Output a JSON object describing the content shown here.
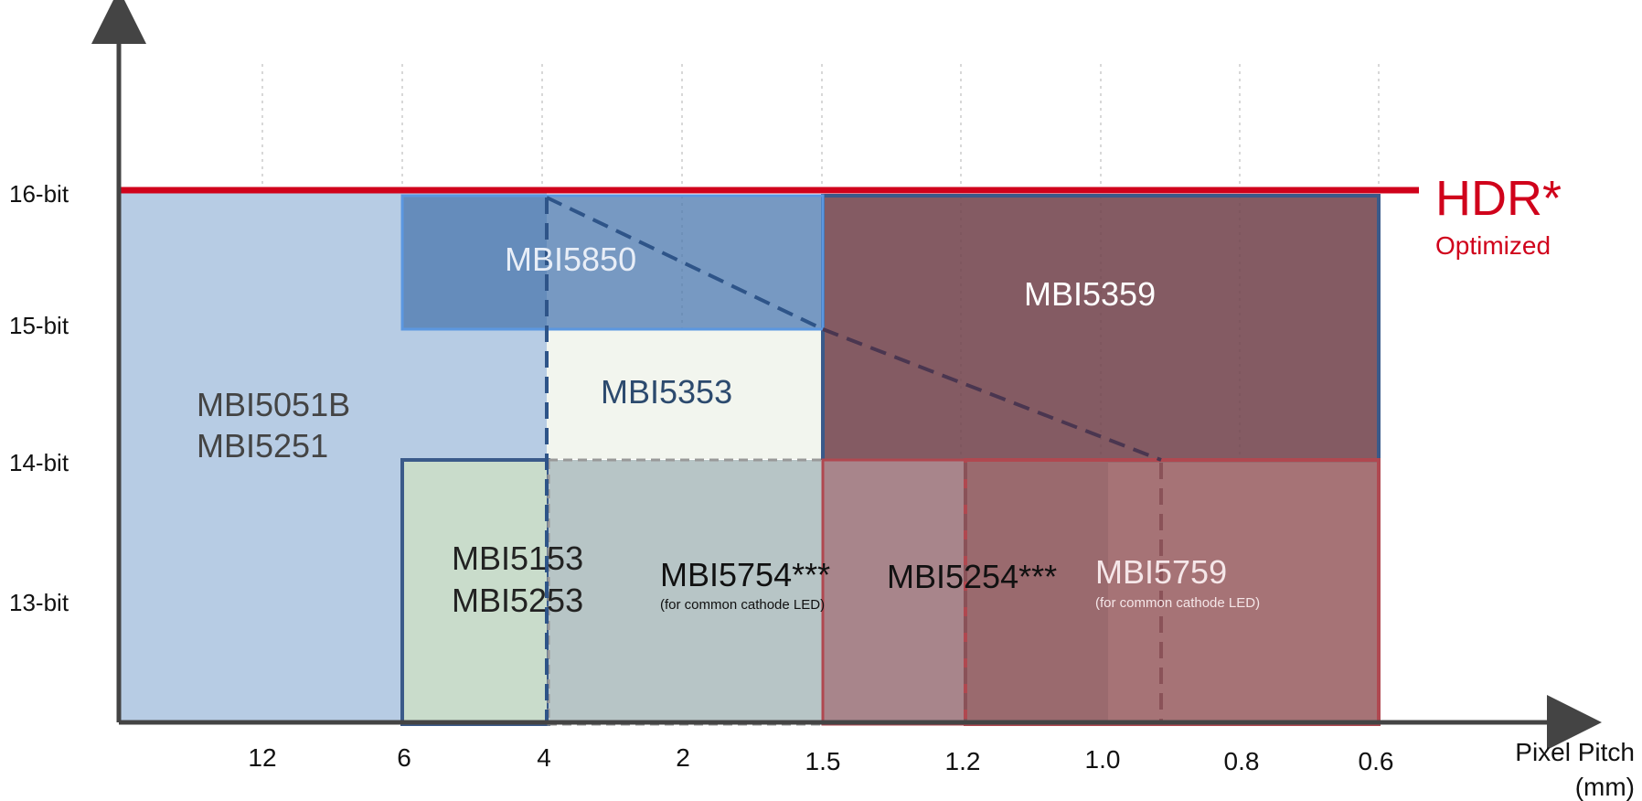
{
  "chart_data": {
    "type": "area",
    "y_ticks": [
      "16-bit",
      "15-bit",
      "14-bit",
      "13-bit"
    ],
    "x_ticks": [
      "12",
      "6",
      "4",
      "2",
      "1.5",
      "1.2",
      "1.0",
      "0.8",
      "0.6"
    ],
    "x_label_line1": "Pixel Pitch",
    "x_label_line2": "(mm)",
    "hdr": {
      "title": "HDR*",
      "subtitle": "Optimized",
      "color": "#d0021b",
      "level": "16-bit"
    },
    "regions": [
      {
        "name": "MBI5051B / MBI5251",
        "lines": [
          "MBI5051B",
          "MBI5251"
        ],
        "note": "",
        "pitch_from": "> 12",
        "pitch_to": "4",
        "bits_from": "< 13-bit",
        "bits_to": "16-bit",
        "fill": "#b7cce4",
        "stroke": "none",
        "text_color": "#444444"
      },
      {
        "name": "MBI5850",
        "lines": [
          "MBI5850"
        ],
        "note": "",
        "pitch_from": "6",
        "pitch_to": "1.5",
        "bits_from": "15-bit",
        "bits_to": "16-bit",
        "fill": "#4a77ad",
        "stroke": "#5b97e0",
        "text_color": "#e8eef7"
      },
      {
        "name": "MBI5359",
        "lines": [
          "MBI5359"
        ],
        "note": "",
        "pitch_from": "1.5",
        "pitch_to": "0.6",
        "bits_from": "14-bit",
        "bits_to": "16-bit",
        "fill": "#6e3e48",
        "stroke": "#3a5a8a",
        "text_color": "#ffffff"
      },
      {
        "name": "MBI5353",
        "lines": [
          "MBI5353"
        ],
        "note": "",
        "pitch_from": "4",
        "pitch_to": "1.5",
        "bits_from": "14-bit",
        "bits_to": "15-bit",
        "fill": "#f2f5ee",
        "stroke": "none",
        "text_color": "#2c4a6e"
      },
      {
        "name": "MBI5153 / MBI5253",
        "lines": [
          "MBI5153",
          "MBI5253"
        ],
        "note": "",
        "pitch_from": "6",
        "pitch_to": "1.5",
        "bits_from": "< 13-bit",
        "bits_to": "14-bit",
        "fill": "#c9dccb",
        "stroke": "#3a5a8a",
        "text_color": "#222222"
      },
      {
        "name": "MBI5754***",
        "lines": [
          "MBI5754***"
        ],
        "note": "(for common cathode LED)",
        "pitch_from": "4",
        "pitch_to": "1.2",
        "bits_from": "< 13-bit",
        "bits_to": "14-bit",
        "fill": "#b7c5c6",
        "stroke": "#999999",
        "text_color": "#111111"
      },
      {
        "name": "MBI5254***",
        "lines": [
          "MBI5254***"
        ],
        "note": "",
        "pitch_from": "1.5",
        "pitch_to": "1.2",
        "bits_from": "< 13-bit",
        "bits_to": "14-bit",
        "fill": "#a8858b",
        "stroke": "#b04850",
        "text_color": "#111111"
      },
      {
        "name": "MBI5759",
        "lines": [
          "MBI5759"
        ],
        "note": "(for common cathode LED)",
        "pitch_from": "1.2",
        "pitch_to": "0.6",
        "bits_from": "< 13-bit",
        "bits_to": "14-bit",
        "fill": "#9a6a6e",
        "stroke": "#b04850",
        "text_color": "#f5e6e8"
      }
    ],
    "grid": true,
    "legend": "none"
  }
}
